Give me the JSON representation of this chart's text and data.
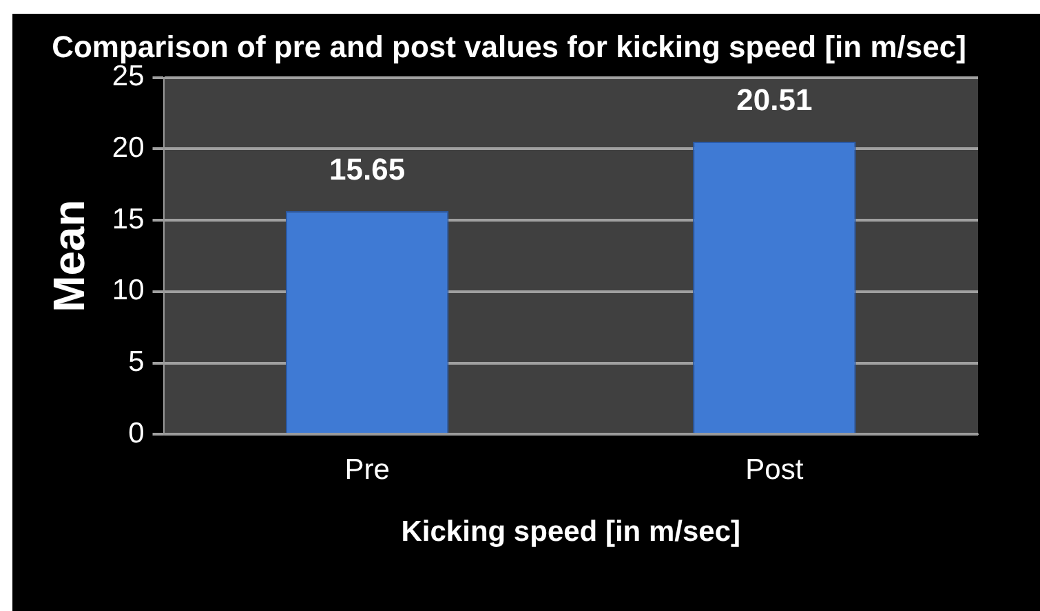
{
  "chart_data": {
    "type": "bar",
    "title": "Comparison of pre and post values for kicking speed [in m/sec]",
    "xlabel": "Kicking speed [in m/sec]",
    "ylabel": "Mean",
    "categories": [
      "Pre",
      "Post"
    ],
    "values": [
      15.65,
      20.51
    ],
    "color": "#3f7ad4",
    "ylim": [
      0,
      25
    ],
    "yticks": [
      0,
      5,
      10,
      15,
      20,
      25
    ],
    "grid": "y",
    "data_labels": true,
    "legend": false
  }
}
